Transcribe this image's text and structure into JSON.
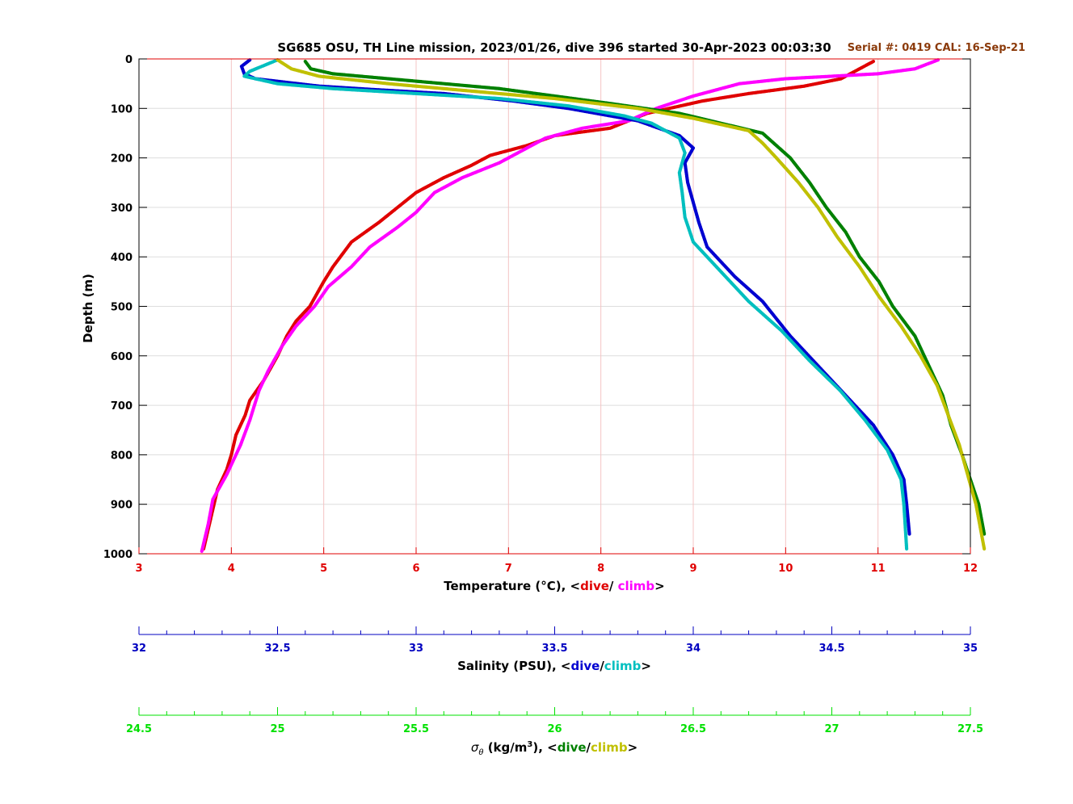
{
  "chart_data": {
    "type": "scatter",
    "title": "SG685 OSU, TH Line mission, 2023/01/26, dive 396 started 30-Apr-2023 00:03:30",
    "serial_text": "Serial #: 0419  CAL: 16-Sep-21",
    "ylabel": "Depth (m)",
    "ylim": [
      0,
      1000
    ],
    "y_ticks": [
      "0",
      "100",
      "200",
      "300",
      "400",
      "500",
      "600",
      "700",
      "800",
      "900",
      "1000"
    ],
    "grid": true,
    "axes": [
      {
        "id": "temperature",
        "label_prefix": "Temperature (°C), <",
        "dive_word": "dive",
        "sep": "/ ",
        "climb_word": "climb",
        "suffix": ">",
        "xlim": [
          3,
          12
        ],
        "ticks": [
          "3",
          "4",
          "5",
          "6",
          "7",
          "8",
          "9",
          "10",
          "11",
          "12"
        ],
        "color": "#e00000",
        "dive_color": "#e00000",
        "climb_color": "#ff00ff"
      },
      {
        "id": "salinity",
        "label_prefix": "Salinity (PSU), <",
        "dive_word": "dive",
        "sep": "/",
        "climb_word": "climb",
        "suffix": ">",
        "xlim": [
          32,
          35
        ],
        "ticks": [
          "32",
          "32.5",
          "33",
          "33.5",
          "34",
          "34.5",
          "35"
        ],
        "color": "#0000c0",
        "dive_color": "#0000d0",
        "climb_color": "#00bfbf"
      },
      {
        "id": "sigma",
        "label_prefix_sym": "σ",
        "label_prefix_sub": "θ",
        "label_units": " (kg/m",
        "label_sup": "3",
        "label_rest": "), <",
        "dive_word": "dive",
        "sep": "/",
        "climb_word": "climb",
        "suffix": ">",
        "xlim": [
          24.5,
          27.5
        ],
        "ticks": [
          "24.5",
          "25",
          "25.5",
          "26",
          "26.5",
          "27",
          "27.5"
        ],
        "color": "#00e000",
        "dive_color": "#008000",
        "climb_color": "#c0c000"
      }
    ],
    "series": [
      {
        "name": "dive",
        "axis": "temperature",
        "color": "#e00000",
        "points": [
          [
            10.95,
            5
          ],
          [
            10.8,
            20
          ],
          [
            10.6,
            40
          ],
          [
            10.2,
            55
          ],
          [
            9.6,
            70
          ],
          [
            9.1,
            85
          ],
          [
            8.5,
            110
          ],
          [
            8.1,
            140
          ],
          [
            7.5,
            155
          ],
          [
            7.2,
            175
          ],
          [
            6.8,
            195
          ],
          [
            6.6,
            215
          ],
          [
            6.3,
            240
          ],
          [
            6.0,
            270
          ],
          [
            5.8,
            300
          ],
          [
            5.6,
            330
          ],
          [
            5.3,
            370
          ],
          [
            5.1,
            420
          ],
          [
            5.0,
            450
          ],
          [
            4.85,
            500
          ],
          [
            4.7,
            530
          ],
          [
            4.6,
            560
          ],
          [
            4.5,
            600
          ],
          [
            4.35,
            650
          ],
          [
            4.2,
            690
          ],
          [
            4.15,
            720
          ],
          [
            4.05,
            760
          ],
          [
            4.0,
            800
          ],
          [
            3.95,
            830
          ],
          [
            3.85,
            870
          ],
          [
            3.8,
            910
          ],
          [
            3.75,
            950
          ],
          [
            3.7,
            990
          ]
        ]
      },
      {
        "name": "climb",
        "axis": "temperature",
        "color": "#ff00ff",
        "points": [
          [
            11.65,
            2
          ],
          [
            11.4,
            20
          ],
          [
            11.0,
            30
          ],
          [
            10.5,
            35
          ],
          [
            10.0,
            40
          ],
          [
            9.5,
            50
          ],
          [
            9.0,
            75
          ],
          [
            8.6,
            100
          ],
          [
            8.3,
            125
          ],
          [
            7.8,
            140
          ],
          [
            7.4,
            160
          ],
          [
            7.1,
            190
          ],
          [
            6.9,
            210
          ],
          [
            6.5,
            240
          ],
          [
            6.2,
            270
          ],
          [
            6.0,
            310
          ],
          [
            5.8,
            340
          ],
          [
            5.5,
            380
          ],
          [
            5.3,
            420
          ],
          [
            5.05,
            460
          ],
          [
            4.9,
            500
          ],
          [
            4.7,
            540
          ],
          [
            4.55,
            580
          ],
          [
            4.4,
            630
          ],
          [
            4.3,
            670
          ],
          [
            4.25,
            700
          ],
          [
            4.2,
            730
          ],
          [
            4.1,
            780
          ],
          [
            3.95,
            840
          ],
          [
            3.8,
            890
          ],
          [
            3.75,
            940
          ],
          [
            3.68,
            995
          ]
        ]
      },
      {
        "name": "dive",
        "axis": "salinity",
        "color": "#0000d0",
        "points": [
          [
            32.4,
            2
          ],
          [
            32.37,
            15
          ],
          [
            32.38,
            30
          ],
          [
            32.42,
            40
          ],
          [
            32.65,
            55
          ],
          [
            32.85,
            62
          ],
          [
            33.1,
            70
          ],
          [
            33.35,
            85
          ],
          [
            33.55,
            100
          ],
          [
            33.8,
            125
          ],
          [
            33.95,
            155
          ],
          [
            34.0,
            180
          ],
          [
            33.97,
            210
          ],
          [
            33.98,
            250
          ],
          [
            34.0,
            290
          ],
          [
            34.02,
            330
          ],
          [
            34.05,
            380
          ],
          [
            34.15,
            440
          ],
          [
            34.25,
            490
          ],
          [
            34.35,
            560
          ],
          [
            34.45,
            620
          ],
          [
            34.55,
            680
          ],
          [
            34.65,
            740
          ],
          [
            34.72,
            800
          ],
          [
            34.76,
            850
          ],
          [
            34.77,
            900
          ],
          [
            34.78,
            960
          ]
        ]
      },
      {
        "name": "climb",
        "axis": "salinity",
        "color": "#00bfbf",
        "points": [
          [
            32.5,
            2
          ],
          [
            32.4,
            25
          ],
          [
            32.38,
            35
          ],
          [
            32.5,
            50
          ],
          [
            32.7,
            60
          ],
          [
            33.0,
            70
          ],
          [
            33.3,
            80
          ],
          [
            33.55,
            95
          ],
          [
            33.75,
            115
          ],
          [
            33.85,
            130
          ],
          [
            33.95,
            160
          ],
          [
            33.97,
            190
          ],
          [
            33.95,
            230
          ],
          [
            33.96,
            270
          ],
          [
            33.97,
            320
          ],
          [
            34.0,
            370
          ],
          [
            34.1,
            430
          ],
          [
            34.2,
            490
          ],
          [
            34.32,
            550
          ],
          [
            34.42,
            610
          ],
          [
            34.53,
            670
          ],
          [
            34.62,
            730
          ],
          [
            34.7,
            790
          ],
          [
            34.75,
            850
          ],
          [
            34.76,
            900
          ],
          [
            34.77,
            990
          ]
        ]
      },
      {
        "name": "dive",
        "axis": "sigma",
        "color": "#008000",
        "points": [
          [
            25.1,
            5
          ],
          [
            25.12,
            20
          ],
          [
            25.2,
            30
          ],
          [
            25.5,
            45
          ],
          [
            25.8,
            60
          ],
          [
            26.0,
            75
          ],
          [
            26.2,
            90
          ],
          [
            26.45,
            110
          ],
          [
            26.6,
            130
          ],
          [
            26.75,
            150
          ],
          [
            26.8,
            175
          ],
          [
            26.85,
            200
          ],
          [
            26.92,
            250
          ],
          [
            26.98,
            300
          ],
          [
            27.05,
            350
          ],
          [
            27.1,
            400
          ],
          [
            27.17,
            450
          ],
          [
            27.22,
            500
          ],
          [
            27.3,
            560
          ],
          [
            27.35,
            620
          ],
          [
            27.4,
            680
          ],
          [
            27.43,
            740
          ],
          [
            27.47,
            800
          ],
          [
            27.5,
            850
          ],
          [
            27.53,
            900
          ],
          [
            27.55,
            960
          ]
        ]
      },
      {
        "name": "climb",
        "axis": "sigma",
        "color": "#c0c000",
        "points": [
          [
            25.0,
            2
          ],
          [
            25.05,
            20
          ],
          [
            25.15,
            35
          ],
          [
            25.4,
            50
          ],
          [
            25.7,
            65
          ],
          [
            26.0,
            80
          ],
          [
            26.3,
            100
          ],
          [
            26.5,
            120
          ],
          [
            26.7,
            145
          ],
          [
            26.75,
            170
          ],
          [
            26.8,
            200
          ],
          [
            26.88,
            250
          ],
          [
            26.95,
            300
          ],
          [
            27.02,
            360
          ],
          [
            27.1,
            420
          ],
          [
            27.17,
            480
          ],
          [
            27.25,
            540
          ],
          [
            27.32,
            600
          ],
          [
            27.38,
            660
          ],
          [
            27.42,
            720
          ],
          [
            27.46,
            780
          ],
          [
            27.49,
            840
          ],
          [
            27.52,
            900
          ],
          [
            27.55,
            990
          ]
        ]
      }
    ]
  }
}
